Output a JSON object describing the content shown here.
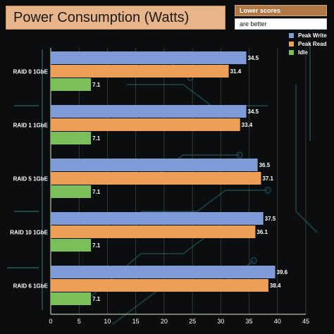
{
  "header": {
    "title": "Power Consumption (Watts)",
    "note_top": "Lower scores",
    "note_bottom": "are better"
  },
  "colors": {
    "peak_write": "#7f9cd8",
    "peak_read": "#ee9f57",
    "idle": "#7bbf58"
  },
  "chart_data": {
    "type": "bar",
    "orientation": "horizontal",
    "categories": [
      "RAID 0 1GbE",
      "RAID 1 1GbE",
      "RAID 5 1GbE",
      "RAID 10 1GbE",
      "RAID 6 1GbE"
    ],
    "series": [
      {
        "name": "Peak Write",
        "values": [
          34.5,
          34.5,
          36.5,
          37.5,
          39.6
        ]
      },
      {
        "name": "Peak Read",
        "values": [
          31.4,
          33.4,
          37.1,
          36.1,
          38.4
        ]
      },
      {
        "name": "Idle",
        "values": [
          7.1,
          7.1,
          7.1,
          7.1,
          7.1
        ]
      }
    ],
    "xlim": [
      0,
      45
    ],
    "xticks": [
      "0",
      "5",
      "10",
      "15",
      "20",
      "25",
      "30",
      "35",
      "40",
      "45"
    ],
    "grid": true,
    "legend": "top-right"
  }
}
